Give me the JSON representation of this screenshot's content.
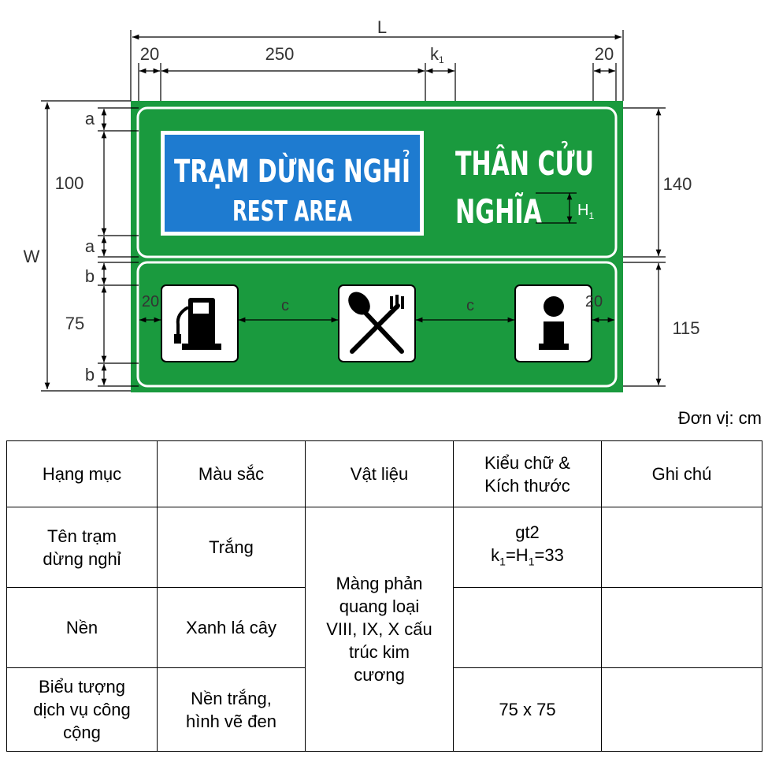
{
  "sign": {
    "title_vi": "TRẠM DỪNG NGHỈ",
    "title_en": "REST AREA",
    "station_line1": "THÂN CỬU",
    "station_line2": "NGHĨA",
    "background_color": "#1a9a3e",
    "panel_color": "#1e7bd0",
    "icons": [
      "fuel-pump-icon",
      "fork-spoon-icon",
      "information-icon"
    ]
  },
  "dimensions": {
    "L": "L",
    "left_margin": "20",
    "panel_width": "250",
    "k": "k",
    "k_sub": "1",
    "right_margin": "20",
    "W": "W",
    "a_top": "a",
    "height_100": "100",
    "a_bottom": "a",
    "b_top": "b",
    "height_75": "75",
    "b_bottom": "b",
    "icon_left": "20",
    "gap1": "c",
    "gap2": "c",
    "icon_right": "20",
    "H": "H",
    "H_sub": "1",
    "right_top": "140",
    "right_bottom": "115"
  },
  "unit_note": "Đơn vị: cm",
  "table": {
    "headers": [
      "Hạng mục",
      "Màu sắc",
      "Vật liệu",
      "Kiểu chữ &\nKích thước",
      "Ghi chú"
    ],
    "rows": [
      {
        "item": "Tên trạm\ndừng nghỉ",
        "color": "Trắng",
        "font_line1": "gt2",
        "font_k": "k",
        "font_sub1": "1",
        "font_mid": "=H",
        "font_sub2": "1",
        "font_end": "=33",
        "note": ""
      },
      {
        "item": "Nền",
        "color": "Xanh lá cây",
        "font": "",
        "note": ""
      },
      {
        "item": "Biểu tượng\ndịch vụ công\ncộng",
        "color": "Nền trắng,\nhình vẽ đen",
        "font": "75 x 75",
        "note": ""
      }
    ],
    "material": "Màng phản\nquang loại\nVIII, IX, X cấu\ntrúc kim\ncương"
  }
}
